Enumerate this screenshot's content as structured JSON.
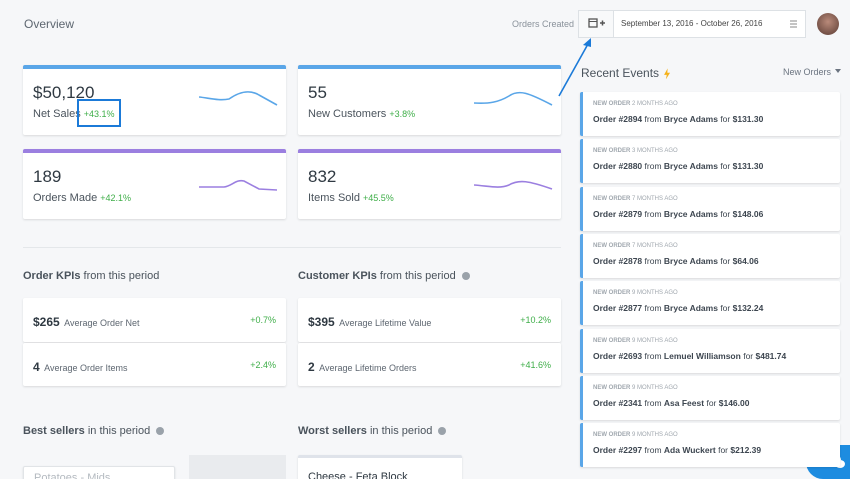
{
  "header": {
    "title": "Overview",
    "date_label": "Orders Created",
    "date_range": "September 13, 2016 - October 26, 2016"
  },
  "stats": [
    {
      "value": "$50,120",
      "label": "Net Sales",
      "change": "+43.1%"
    },
    {
      "value": "55",
      "label": "New Customers",
      "change": "+3.8%"
    },
    {
      "value": "189",
      "label": "Orders Made",
      "change": "+42.1%"
    },
    {
      "value": "832",
      "label": "Items Sold",
      "change": "+45.5%"
    }
  ],
  "order_kpis": {
    "title": "Order KPIs",
    "subtitle": "from this period",
    "items": [
      {
        "value": "$265",
        "label": "Average Order Net",
        "change": "+0.7%"
      },
      {
        "value": "4",
        "label": "Average Order Items",
        "change": "+2.4%"
      }
    ]
  },
  "customer_kpis": {
    "title": "Customer KPIs",
    "subtitle": "from this period",
    "items": [
      {
        "value": "$395",
        "label": "Average Lifetime Value",
        "change": "+10.2%"
      },
      {
        "value": "2",
        "label": "Average Lifetime Orders",
        "change": "+41.6%"
      }
    ]
  },
  "best_sellers": {
    "title": "Best sellers",
    "subtitle": "in this period",
    "items": [
      "Potatoes - Mids"
    ]
  },
  "worst_sellers": {
    "title": "Worst sellers",
    "subtitle": "in this period",
    "items": [
      "Cheese - Feta Block"
    ]
  },
  "recent_events": {
    "title": "Recent Events",
    "filter": "New Orders",
    "events": [
      {
        "kind": "NEW ORDER",
        "age": "2 MONTHS AGO",
        "order": "Order #2894",
        "from": "from",
        "customer": "Bryce Adams",
        "for": "for",
        "amount": "$131.30"
      },
      {
        "kind": "NEW ORDER",
        "age": "3 MONTHS AGO",
        "order": "Order #2880",
        "from": "from",
        "customer": "Bryce Adams",
        "for": "for",
        "amount": "$131.30"
      },
      {
        "kind": "NEW ORDER",
        "age": "7 MONTHS AGO",
        "order": "Order #2879",
        "from": "from",
        "customer": "Bryce Adams",
        "for": "for",
        "amount": "$148.06"
      },
      {
        "kind": "NEW ORDER",
        "age": "7 MONTHS AGO",
        "order": "Order #2878",
        "from": "from",
        "customer": "Bryce Adams",
        "for": "for",
        "amount": "$64.06"
      },
      {
        "kind": "NEW ORDER",
        "age": "9 MONTHS AGO",
        "order": "Order #2877",
        "from": "from",
        "customer": "Bryce Adams",
        "for": "for",
        "amount": "$132.24"
      },
      {
        "kind": "NEW ORDER",
        "age": "9 MONTHS AGO",
        "order": "Order #2693",
        "from": "from",
        "customer": "Lemuel Williamson",
        "for": "for",
        "amount": "$481.74"
      },
      {
        "kind": "NEW ORDER",
        "age": "9 MONTHS AGO",
        "order": "Order #2341",
        "from": "from",
        "customer": "Asa Feest",
        "for": "for",
        "amount": "$146.00"
      },
      {
        "kind": "NEW ORDER",
        "age": "9 MONTHS AGO",
        "order": "Order #2297",
        "from": "from",
        "customer": "Ada Wuckert",
        "for": "for",
        "amount": "$212.39"
      }
    ]
  }
}
